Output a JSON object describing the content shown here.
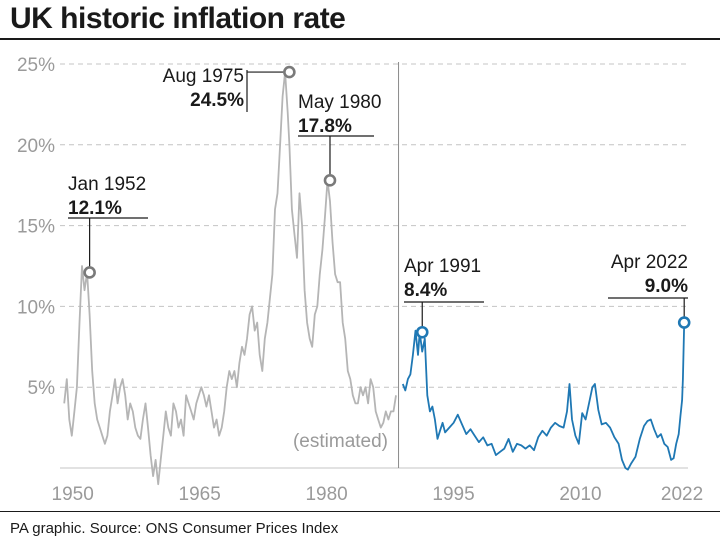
{
  "title": "UK historic inflation rate",
  "footer": "PA graphic. Source: ONS Consumer Prices Index",
  "colors": {
    "estimated": "#b5b5b5",
    "official": "#1f78b4",
    "marker": "#7a7a7a",
    "grid": "#c4c4c4",
    "axis_text": "#9a9a9a"
  },
  "chart_data": {
    "type": "line",
    "title": "UK historic inflation rate",
    "xlabel": "",
    "ylabel": "",
    "xlim": [
      1948.5,
      2022.7
    ],
    "ylim": [
      0,
      25
    ],
    "y_ticks": [
      {
        "v": 25,
        "label": "25%"
      },
      {
        "v": 20,
        "label": "20%"
      },
      {
        "v": 15,
        "label": "15%"
      },
      {
        "v": 10,
        "label": "10%"
      },
      {
        "v": 5,
        "label": "5%"
      }
    ],
    "x_ticks": [
      {
        "v": 1950,
        "label": "1950"
      },
      {
        "v": 1965,
        "label": "1965"
      },
      {
        "v": 1980,
        "label": "1980"
      },
      {
        "v": 1995,
        "label": "1995"
      },
      {
        "v": 2010,
        "label": "2010"
      },
      {
        "v": 2022,
        "label": "2022"
      }
    ],
    "grid": true,
    "divider_x": 1988.5,
    "estimated_label": "(estimated)",
    "series": [
      {
        "key": "estimated",
        "x": [
          1949.0,
          1949.3,
          1949.6,
          1949.9,
          1950.2,
          1950.5,
          1950.8,
          1951.1,
          1951.4,
          1951.7,
          1952.0,
          1952.3,
          1952.6,
          1952.9,
          1953.2,
          1953.5,
          1953.8,
          1954.1,
          1954.4,
          1954.7,
          1955.0,
          1955.3,
          1955.6,
          1955.9,
          1956.2,
          1956.5,
          1956.8,
          1957.1,
          1957.4,
          1957.7,
          1958.0,
          1958.3,
          1958.6,
          1958.9,
          1959.2,
          1959.5,
          1959.8,
          1960.1,
          1960.4,
          1960.7,
          1961.0,
          1961.3,
          1961.6,
          1961.9,
          1962.2,
          1962.5,
          1962.8,
          1963.1,
          1963.4,
          1963.7,
          1964.0,
          1964.3,
          1964.6,
          1964.9,
          1965.2,
          1965.5,
          1965.8,
          1966.1,
          1966.4,
          1966.7,
          1967.0,
          1967.3,
          1967.6,
          1967.9,
          1968.2,
          1968.5,
          1968.8,
          1969.1,
          1969.4,
          1969.7,
          1970.0,
          1970.3,
          1970.6,
          1970.9,
          1971.2,
          1971.5,
          1971.8,
          1972.1,
          1972.4,
          1972.7,
          1973.0,
          1973.3,
          1973.6,
          1973.9,
          1974.2,
          1974.5,
          1974.8,
          1975.1,
          1975.4,
          1975.6,
          1975.9,
          1976.2,
          1976.5,
          1976.8,
          1977.1,
          1977.4,
          1977.7,
          1978.0,
          1978.3,
          1978.6,
          1978.9,
          1979.2,
          1979.5,
          1979.8,
          1980.1,
          1980.4,
          1980.7,
          1981.0,
          1981.3,
          1981.6,
          1981.9,
          1982.2,
          1982.5,
          1982.8,
          1983.1,
          1983.4,
          1983.7,
          1984.0,
          1984.3,
          1984.6,
          1984.9,
          1985.2,
          1985.5,
          1985.8,
          1986.1,
          1986.4,
          1986.7,
          1987.0,
          1987.3,
          1987.6,
          1987.9,
          1988.2
        ],
        "y": [
          4.0,
          5.5,
          3.0,
          2.0,
          3.5,
          5.0,
          9.0,
          12.5,
          11.0,
          12.1,
          9.5,
          6.0,
          4.0,
          3.0,
          2.5,
          2.0,
          1.5,
          2.0,
          3.5,
          4.5,
          5.5,
          4.0,
          5.0,
          5.5,
          4.5,
          3.0,
          4.0,
          3.5,
          2.5,
          2.0,
          1.8,
          3.0,
          4.0,
          2.5,
          0.8,
          -0.5,
          0.5,
          -1.0,
          0.5,
          2.0,
          3.5,
          2.5,
          2.0,
          4.0,
          3.5,
          2.5,
          3.0,
          2.0,
          4.5,
          4.0,
          3.5,
          3.0,
          4.0,
          4.5,
          5.0,
          4.5,
          3.8,
          4.5,
          3.5,
          2.5,
          3.0,
          2.0,
          2.5,
          3.5,
          5.0,
          6.0,
          5.5,
          6.0,
          5.0,
          6.5,
          7.5,
          7.0,
          8.0,
          9.5,
          10.0,
          8.5,
          9.0,
          7.0,
          6.0,
          8.0,
          9.0,
          10.5,
          12.0,
          16.0,
          17.0,
          20.0,
          23.0,
          24.5,
          22.0,
          20.0,
          16.0,
          14.5,
          13.0,
          17.0,
          15.0,
          11.0,
          9.0,
          8.0,
          7.5,
          9.5,
          10.0,
          12.0,
          13.5,
          15.5,
          17.8,
          16.5,
          14.0,
          12.0,
          11.5,
          11.5,
          9.0,
          8.0,
          6.0,
          5.5,
          4.5,
          4.0,
          4.0,
          5.0,
          4.5,
          5.0,
          4.0,
          5.5,
          5.0,
          3.5,
          3.0,
          2.5,
          2.8,
          3.5,
          3.0,
          3.5,
          3.5,
          4.5
        ]
      },
      {
        "key": "official",
        "x": [
          1989.0,
          1989.3,
          1989.6,
          1989.9,
          1990.2,
          1990.5,
          1990.8,
          1991.0,
          1991.3,
          1991.6,
          1991.9,
          1992.2,
          1992.5,
          1992.8,
          1993.1,
          1993.4,
          1993.7,
          1994.0,
          1994.5,
          1995.0,
          1995.5,
          1996.0,
          1996.5,
          1997.0,
          1997.5,
          1998.0,
          1998.5,
          1999.0,
          1999.5,
          2000.0,
          2000.5,
          2001.0,
          2001.5,
          2002.0,
          2002.5,
          2003.0,
          2003.5,
          2004.0,
          2004.5,
          2005.0,
          2005.5,
          2006.0,
          2006.5,
          2007.0,
          2007.5,
          2008.0,
          2008.4,
          2008.7,
          2009.0,
          2009.4,
          2009.8,
          2010.2,
          2010.6,
          2011.0,
          2011.4,
          2011.7,
          2012.1,
          2012.5,
          2013.0,
          2013.5,
          2014.0,
          2014.5,
          2014.9,
          2015.3,
          2015.6,
          2016.0,
          2016.5,
          2017.0,
          2017.5,
          2017.9,
          2018.3,
          2018.7,
          2019.1,
          2019.5,
          2019.9,
          2020.3,
          2020.7,
          2021.0,
          2021.3,
          2021.6,
          2021.8,
          2022.0,
          2022.1,
          2022.25
        ],
        "y": [
          5.2,
          4.8,
          5.5,
          5.8,
          7.0,
          8.5,
          7.0,
          8.4,
          7.2,
          8.0,
          4.5,
          3.5,
          3.8,
          3.0,
          1.8,
          2.3,
          2.8,
          2.2,
          2.5,
          2.8,
          3.3,
          2.7,
          2.1,
          2.4,
          2.0,
          1.6,
          1.9,
          1.4,
          1.5,
          0.8,
          1.0,
          1.2,
          1.8,
          1.0,
          1.5,
          1.4,
          1.2,
          1.4,
          1.1,
          1.9,
          2.3,
          2.0,
          2.5,
          2.8,
          2.6,
          2.5,
          3.5,
          5.2,
          3.0,
          2.0,
          1.5,
          3.4,
          3.0,
          4.0,
          5.0,
          5.2,
          3.6,
          2.7,
          2.8,
          2.5,
          1.9,
          1.5,
          0.5,
          0.0,
          -0.1,
          0.3,
          0.7,
          1.8,
          2.6,
          2.9,
          3.0,
          2.4,
          1.9,
          2.1,
          1.5,
          1.3,
          0.5,
          0.6,
          1.5,
          2.1,
          3.2,
          4.2,
          5.5,
          9.0
        ]
      }
    ],
    "annotations": [
      {
        "x": 1952.0,
        "y": 12.1,
        "color": "gray",
        "date": "Jan 1952",
        "value": "12.1%"
      },
      {
        "x": 1975.6,
        "y": 24.5,
        "color": "gray",
        "date": "Aug 1975",
        "value": "24.5%"
      },
      {
        "x": 1980.4,
        "y": 17.8,
        "color": "gray",
        "date": "May 1980",
        "value": "17.8%"
      },
      {
        "x": 1991.3,
        "y": 8.4,
        "color": "blue",
        "date": "Apr 1991",
        "value": "8.4%"
      },
      {
        "x": 2022.25,
        "y": 9.0,
        "color": "blue",
        "date": "Apr 2022",
        "value": "9.0%"
      }
    ]
  }
}
